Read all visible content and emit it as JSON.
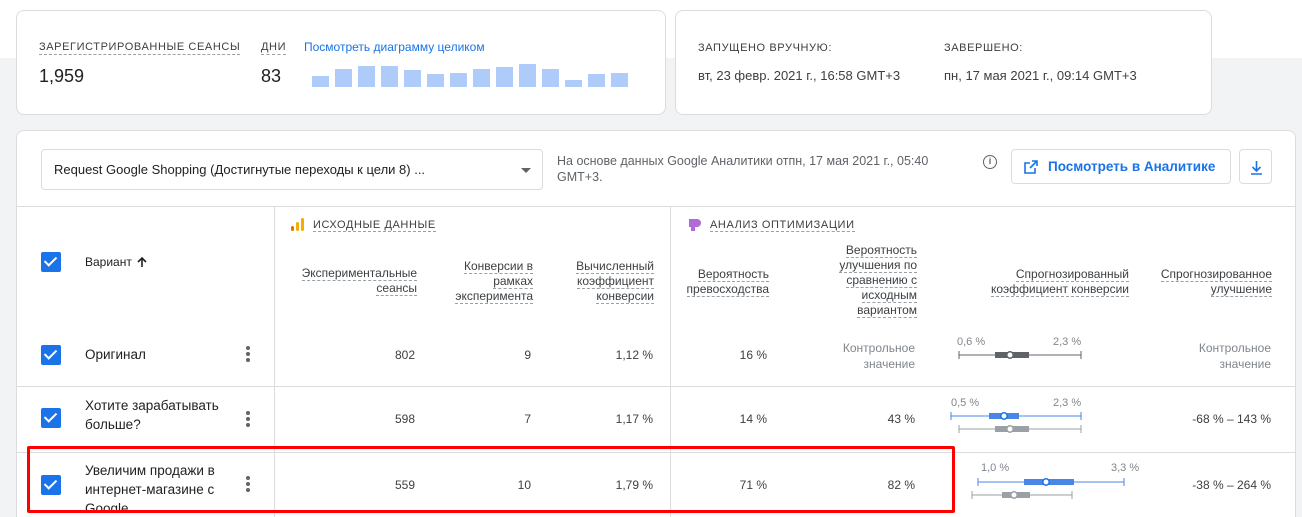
{
  "summary": {
    "sessions_label": "ЗАРЕГИСТРИРОВАННЫЕ СЕАНСЫ",
    "sessions_value": "1,959",
    "days_label": "ДНИ",
    "days_value": "83",
    "chart_link": "Посмотреть диаграмму целиком",
    "bar_levels": [
      0.48,
      0.8,
      0.92,
      0.9,
      0.72,
      0.58,
      0.62,
      0.8,
      0.85,
      1.0,
      0.8,
      0.3,
      0.58,
      0.62
    ]
  },
  "run_info": {
    "started_label": "ЗАПУЩЕНО ВРУЧНУЮ:",
    "started_value": "вт, 23 февр. 2021 г., 16:58 GMT+3",
    "ended_label": "ЗАВЕРШЕНО:",
    "ended_value": "пн, 17 мая 2021 г., 09:14 GMT+3"
  },
  "report": {
    "objective": "Request Google Shopping (Достигнутые переходы к цели 8) ...",
    "note": "На основе данных Google Аналитики отпн, 17 мая 2021 г., 05:40 GMT+3.",
    "analytics_button": "Посмотреть в Аналитике",
    "colors": {
      "accent": "#1a73e8",
      "highlight": "#ff0000"
    }
  },
  "table": {
    "variant_header": "Вариант",
    "group_source": "ИСХОДНЫЕ ДАННЫЕ",
    "group_analysis": "АНАЛИЗ ОПТИМИЗАЦИИ",
    "col_sessions": "Экспериментальные сеансы",
    "col_conversions": "Конверсии в рамках эксперимента",
    "col_rate": "Вычисленный коэффициент конверсии",
    "col_prob_best": "Вероятность превосходства",
    "col_prob_improve": "Вероятность улучшения по сравнению с исходным вариантом",
    "col_forecast_rate": "Спрогнозированный коэффициент конверсии",
    "col_forecast_improve": "Спрогнозированное улучшение",
    "rows": [
      {
        "name": "Оригинал",
        "sessions": "802",
        "conversions": "9",
        "rate": "1,12 %",
        "prob_best": "16 %",
        "prob_improve": "Контрольное значение",
        "ci_low": "0,6 %",
        "ci_high": "2,3 %",
        "improve": "Контрольное значение"
      },
      {
        "name": "Хотите зарабатывать больше?",
        "sessions": "598",
        "conversions": "7",
        "rate": "1,17 %",
        "prob_best": "14 %",
        "prob_improve": "43 %",
        "ci_low": "0,5 %",
        "ci_high": "2,3 %",
        "improve": "-68 % – 143 %"
      },
      {
        "name": "Увеличим продажи в интернет-магазине с Google",
        "sessions": "559",
        "conversions": "10",
        "rate": "1,79 %",
        "prob_best": "71 %",
        "prob_improve": "82 %",
        "ci_low": "1,0 %",
        "ci_high": "3,3 %",
        "improve": "-38 % – 264 %"
      }
    ]
  }
}
